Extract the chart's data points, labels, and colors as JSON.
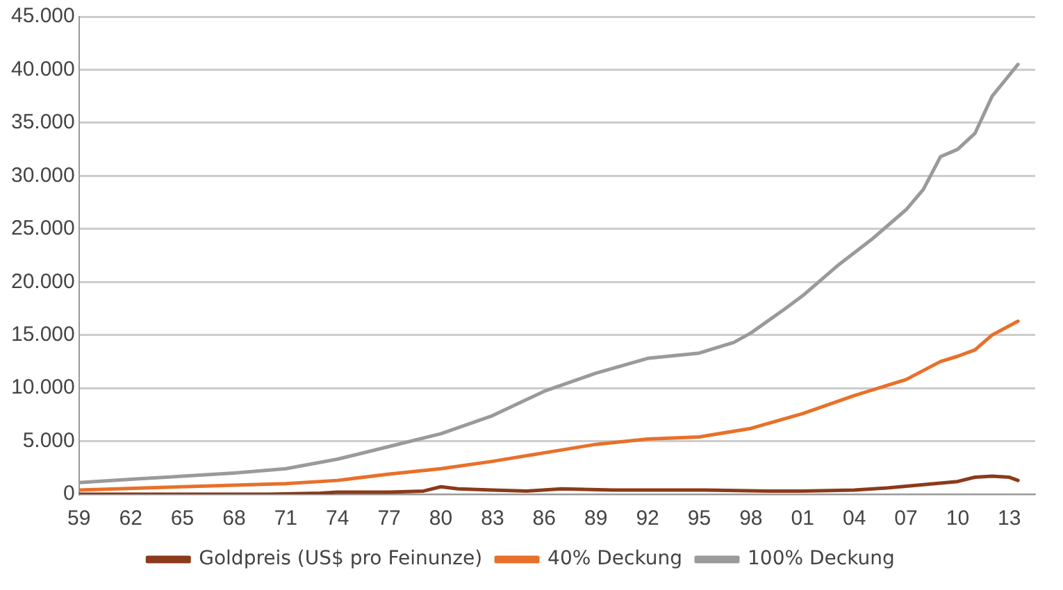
{
  "chart_data": {
    "type": "line",
    "legend": "bottom",
    "grid": "y",
    "marker": "none",
    "line_style": "solid",
    "xlim": [
      1959,
      2014.5
    ],
    "xticks": [
      {
        "value": 1959,
        "label": "59"
      },
      {
        "value": 1962,
        "label": "62"
      },
      {
        "value": 1965,
        "label": "65"
      },
      {
        "value": 1968,
        "label": "68"
      },
      {
        "value": 1971,
        "label": "71"
      },
      {
        "value": 1974,
        "label": "74"
      },
      {
        "value": 1977,
        "label": "77"
      },
      {
        "value": 1980,
        "label": "80"
      },
      {
        "value": 1983,
        "label": "83"
      },
      {
        "value": 1986,
        "label": "86"
      },
      {
        "value": 1989,
        "label": "89"
      },
      {
        "value": 1992,
        "label": "92"
      },
      {
        "value": 1995,
        "label": "95"
      },
      {
        "value": 1998,
        "label": "98"
      },
      {
        "value": 2001,
        "label": "01"
      },
      {
        "value": 2004,
        "label": "04"
      },
      {
        "value": 2007,
        "label": "07"
      },
      {
        "value": 2010,
        "label": "10"
      },
      {
        "value": 2013,
        "label": "13"
      }
    ],
    "ylim": [
      0,
      45000
    ],
    "yticks": [
      0,
      {
        "value": 5000,
        "label": "5.000"
      },
      {
        "value": 10000,
        "label": "10.000"
      },
      {
        "value": 15000,
        "label": "15.000"
      },
      {
        "value": 20000,
        "label": "20.000"
      },
      {
        "value": 25000,
        "label": "25.000"
      },
      {
        "value": 30000,
        "label": "30.000"
      },
      {
        "value": 35000,
        "label": "35.000"
      },
      {
        "value": 40000,
        "label": "40.000"
      },
      {
        "value": 45000,
        "label": "45.000"
      }
    ],
    "series": [
      {
        "name": "Goldpreis (US$ pro Feinunze)",
        "color": "#8b3a1a",
        "x": [
          1959,
          1970,
          1973,
          1974,
          1977,
          1979,
          1980,
          1981,
          1983,
          1985,
          1987,
          1990,
          1995,
          1999,
          2001,
          2004,
          2006,
          2008,
          2010,
          2011,
          2012,
          2013,
          2013.5
        ],
        "values": [
          0,
          0,
          100,
          200,
          200,
          300,
          700,
          500,
          400,
          300,
          500,
          400,
          400,
          300,
          300,
          400,
          600,
          900,
          1200,
          1600,
          1700,
          1600,
          1300
        ]
      },
      {
        "name": "40% Deckung",
        "color": "#e8702a",
        "x": [
          1959,
          1965,
          1971,
          1974,
          1977,
          1980,
          1983,
          1986,
          1989,
          1992,
          1995,
          1998,
          2001,
          2004,
          2007,
          2009,
          2010,
          2011,
          2012,
          2013.5
        ],
        "values": [
          400,
          700,
          1000,
          1300,
          1900,
          2400,
          3100,
          3900,
          4700,
          5200,
          5400,
          6200,
          7600,
          9300,
          10800,
          12500,
          13000,
          13600,
          15000,
          16300
        ]
      },
      {
        "name": "100% Deckung",
        "color": "#9a9a9a",
        "x": [
          1959,
          1962,
          1965,
          1968,
          1971,
          1974,
          1977,
          1980,
          1983,
          1986,
          1989,
          1992,
          1995,
          1997,
          1998,
          2000,
          2001,
          2003,
          2005,
          2007,
          2008,
          2009,
          2010,
          2011,
          2012,
          2013.5
        ],
        "values": [
          1100,
          1400,
          1700,
          2000,
          2400,
          3300,
          4500,
          5700,
          7400,
          9700,
          11400,
          12800,
          13300,
          14300,
          15200,
          17500,
          18700,
          21500,
          24000,
          26800,
          28700,
          31800,
          32500,
          34000,
          37500,
          40500
        ]
      }
    ]
  }
}
